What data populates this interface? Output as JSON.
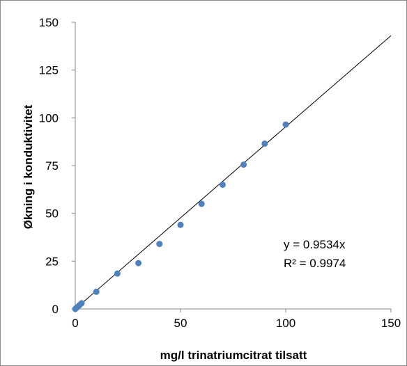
{
  "chart_data": {
    "type": "scatter",
    "xlabel": "mg/l trinatriumcitrat tilsatt",
    "ylabel": "Økning i konduktivitet",
    "xlim": [
      0,
      150
    ],
    "ylim": [
      0,
      150
    ],
    "xticks": [
      "0",
      "50",
      "100",
      "150"
    ],
    "yticks": [
      "0",
      "25",
      "50",
      "75",
      "100",
      "125",
      "150"
    ],
    "grid": false,
    "colors": {
      "points": "#4f81bd",
      "trendline": "#000000"
    },
    "series": [
      {
        "x": [
          0,
          0.5,
          1,
          2,
          3,
          10,
          20,
          30,
          40,
          50,
          60,
          70,
          80,
          90,
          100
        ],
        "y": [
          0,
          0.5,
          1,
          2,
          3,
          9,
          18.5,
          24,
          34,
          44,
          55,
          65,
          75.5,
          86.5,
          96.5
        ]
      }
    ],
    "trendline": {
      "slope": 0.9534,
      "x_range": [
        0,
        150
      ]
    },
    "annotations": [
      "y = 0.9534x",
      "R² = 0.9974"
    ]
  }
}
